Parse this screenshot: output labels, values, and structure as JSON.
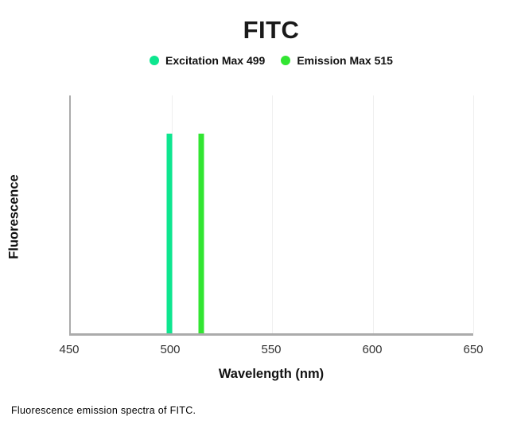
{
  "title": "FITC",
  "legend": [
    {
      "label": "Excitation Max 499",
      "color": "#0de68f"
    },
    {
      "label": "Emission Max 515",
      "color": "#32e532"
    }
  ],
  "axes": {
    "x_label": "Wavelength (nm)",
    "y_label": "Fluorescence"
  },
  "caption": "Fluorescence emission spectra of FITC.",
  "colors": {
    "axis": "#ababab",
    "gridline": "#efefef",
    "tick_text": "#333333",
    "text": "#1a1a1a",
    "background": "#ffffff"
  },
  "chart_data": {
    "type": "bar",
    "title": "FITC",
    "xlabel": "Wavelength (nm)",
    "ylabel": "Fluorescence",
    "xlim": [
      450,
      650
    ],
    "x_ticks": [
      450,
      500,
      550,
      600,
      650
    ],
    "grid": "vertical-only",
    "legend_position": "top-center",
    "y_axis_tick_labels": "none (unlabeled fluorescence intensity)",
    "series": [
      {
        "name": "Excitation Max 499",
        "wavelength_nm": 499,
        "relative_intensity": 0.84,
        "color": "#0de68f"
      },
      {
        "name": "Emission Max 515",
        "wavelength_nm": 515,
        "relative_intensity": 0.84,
        "color": "#32e532"
      }
    ]
  }
}
